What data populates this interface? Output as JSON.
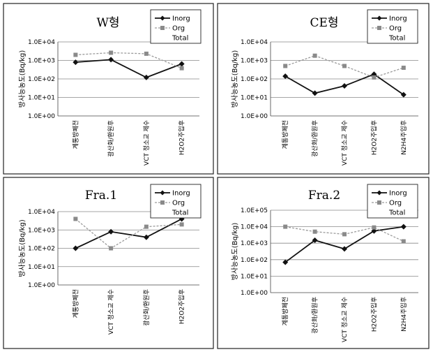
{
  "chart_data": [
    {
      "type": "line",
      "title": "W형",
      "ylabel": "방사능농도(Bq/kg)",
      "y_scale": "log",
      "ylim": [
        1,
        10000
      ],
      "y_ticks": [
        "1.0E+00",
        "1.0E+01",
        "1.0E+02",
        "1.0E+03",
        "1.0E+04"
      ],
      "categories": [
        "계통방폐전",
        "광산화/환원후",
        "VCT 정소교 제수",
        "H2O2주입후"
      ],
      "legend": [
        "Inorg",
        "Org",
        "Total"
      ],
      "series": [
        {
          "name": "Inorg",
          "values": [
            800,
            1100,
            120,
            650
          ]
        },
        {
          "name": "Org",
          "values": [
            2000,
            2600,
            2300,
            380
          ]
        },
        {
          "name": "Total",
          "values": [
            null,
            null,
            null,
            null
          ]
        }
      ]
    },
    {
      "type": "line",
      "title": "CE형",
      "ylabel": "방사능농도(Bq/kg)",
      "y_scale": "log",
      "ylim": [
        1,
        10000
      ],
      "y_ticks": [
        "1.0E+00",
        "1.0E+01",
        "1.0E+02",
        "1.0E+03",
        "1.0E+04"
      ],
      "categories": [
        "계통방폐전",
        "광산화/환원후",
        "VCT 정소교 제수",
        "H2O2주입후",
        "N2H4주입후"
      ],
      "legend": [
        "Inorg",
        "Org",
        "Total"
      ],
      "series": [
        {
          "name": "Inorg",
          "values": [
            140,
            17,
            42,
            180,
            14
          ]
        },
        {
          "name": "Org",
          "values": [
            500,
            1800,
            500,
            120,
            400
          ]
        },
        {
          "name": "Total",
          "values": [
            null,
            null,
            null,
            null,
            null
          ]
        }
      ]
    },
    {
      "type": "line",
      "title": "Fra.1",
      "ylabel": "방사능농도(Bq/kg)",
      "y_scale": "log",
      "ylim": [
        1,
        10000
      ],
      "y_ticks": [
        "1.0E+00",
        "1.0E+01",
        "1.0E+02",
        "1.0E+03",
        "1.0E+04"
      ],
      "categories": [
        "계통방폐전",
        "VCT 정소교 제수",
        "광산화/환원후",
        "H2O2주입후"
      ],
      "legend": [
        "Inorg",
        "Org",
        "Total"
      ],
      "series": [
        {
          "name": "Inorg",
          "values": [
            100,
            800,
            400,
            4000
          ]
        },
        {
          "name": "Org",
          "values": [
            4000,
            100,
            1500,
            2000
          ]
        },
        {
          "name": "Total",
          "values": [
            null,
            null,
            null,
            null
          ]
        }
      ]
    },
    {
      "type": "line",
      "title": "Fra.2",
      "ylabel": "방사능농도(Bq/kg)",
      "y_scale": "log",
      "ylim": [
        1,
        100000
      ],
      "y_ticks": [
        "1.0E+00",
        "1.0E+01",
        "1.0E+02",
        "1.0E+03",
        "1.0E+04",
        "1.0E+05"
      ],
      "categories": [
        "계통방폐전",
        "광산화/환원후",
        "VCT 정소교 제수",
        "H2O2주입후",
        "N2H4주입후"
      ],
      "legend": [
        "Inorg",
        "Org",
        "Total"
      ],
      "series": [
        {
          "name": "Inorg",
          "values": [
            70,
            1500,
            450,
            5500,
            10000
          ]
        },
        {
          "name": "Org",
          "values": [
            10000,
            5000,
            3500,
            9000,
            1300
          ]
        },
        {
          "name": "Total",
          "values": [
            null,
            null,
            null,
            null,
            null
          ]
        }
      ]
    }
  ]
}
